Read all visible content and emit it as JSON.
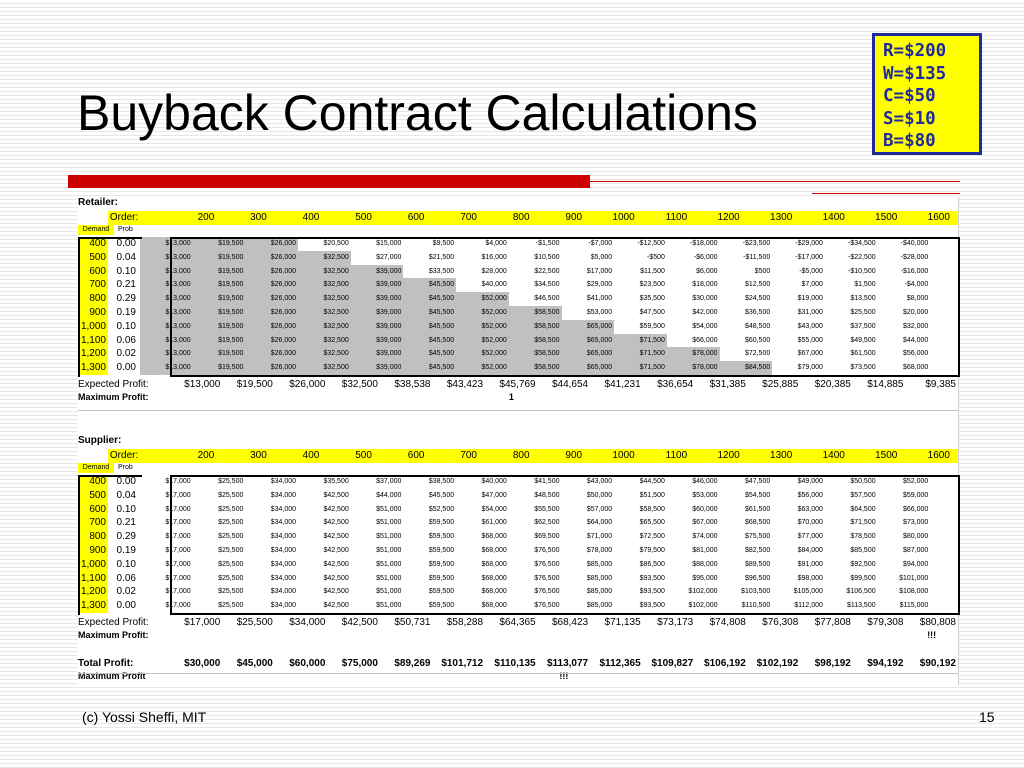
{
  "title": "Buyback Contract Calculations",
  "params": [
    "R=$200",
    "W=$135",
    "C=$50",
    "S=$10",
    "B=$80"
  ],
  "footer": {
    "left": "(c) Yossi Sheffi, MIT",
    "page": "15"
  },
  "table": {
    "order_label": "Order:",
    "demand_label": "Demand",
    "prob_label": "Prob",
    "orders": [
      "200",
      "300",
      "400",
      "500",
      "600",
      "700",
      "800",
      "900",
      "1000",
      "1100",
      "1200",
      "1300",
      "1400",
      "1500",
      "1600"
    ],
    "demands": [
      "400",
      "500",
      "600",
      "700",
      "800",
      "900",
      "1,000",
      "1,100",
      "1,200",
      "1,300"
    ],
    "probs": [
      "0.00",
      "0.04",
      "0.10",
      "0.21",
      "0.29",
      "0.19",
      "0.10",
      "0.06",
      "0.02",
      "0.00"
    ]
  },
  "retailer": {
    "title": "Retailer:",
    "rows": [
      [
        "$13,000",
        "$19,500",
        "$26,000",
        "$20,500",
        "$15,000",
        "$9,500",
        "$4,000",
        "-$1,500",
        "-$7,000",
        "-$12,500",
        "-$18,000",
        "-$23,500",
        "-$29,000",
        "-$34,500",
        "-$40,000"
      ],
      [
        "$13,000",
        "$19,500",
        "$26,000",
        "$32,500",
        "$27,000",
        "$21,500",
        "$16,000",
        "$10,500",
        "$5,000",
        "-$500",
        "-$6,000",
        "-$11,500",
        "-$17,000",
        "-$22,500",
        "-$28,000"
      ],
      [
        "$13,000",
        "$19,500",
        "$26,000",
        "$32,500",
        "$39,000",
        "$33,500",
        "$28,000",
        "$22,500",
        "$17,000",
        "$11,500",
        "$6,000",
        "$500",
        "-$5,000",
        "-$10,500",
        "-$16,000"
      ],
      [
        "$13,000",
        "$19,500",
        "$26,000",
        "$32,500",
        "$39,000",
        "$45,500",
        "$40,000",
        "$34,500",
        "$29,000",
        "$23,500",
        "$18,000",
        "$12,500",
        "$7,000",
        "$1,500",
        "-$4,000"
      ],
      [
        "$13,000",
        "$19,500",
        "$26,000",
        "$32,500",
        "$39,000",
        "$45,500",
        "$52,000",
        "$46,500",
        "$41,000",
        "$35,500",
        "$30,000",
        "$24,500",
        "$19,000",
        "$13,500",
        "$8,000"
      ],
      [
        "$13,000",
        "$19,500",
        "$26,000",
        "$32,500",
        "$39,000",
        "$45,500",
        "$52,000",
        "$58,500",
        "$53,000",
        "$47,500",
        "$42,000",
        "$36,500",
        "$31,000",
        "$25,500",
        "$20,000"
      ],
      [
        "$13,000",
        "$19,500",
        "$26,000",
        "$32,500",
        "$39,000",
        "$45,500",
        "$52,000",
        "$58,500",
        "$65,000",
        "$59,500",
        "$54,000",
        "$48,500",
        "$43,000",
        "$37,500",
        "$32,000"
      ],
      [
        "$13,000",
        "$19,500",
        "$26,000",
        "$32,500",
        "$39,000",
        "$45,500",
        "$52,000",
        "$58,500",
        "$65,000",
        "$71,500",
        "$66,000",
        "$60,500",
        "$55,000",
        "$49,500",
        "$44,000"
      ],
      [
        "$13,000",
        "$19,500",
        "$26,000",
        "$32,500",
        "$39,000",
        "$45,500",
        "$52,000",
        "$58,500",
        "$65,000",
        "$71,500",
        "$78,000",
        "$72,500",
        "$67,000",
        "$61,500",
        "$56,000"
      ],
      [
        "$13,000",
        "$19,500",
        "$26,000",
        "$32,500",
        "$39,000",
        "$45,500",
        "$52,000",
        "$58,500",
        "$65,000",
        "$71,500",
        "$78,000",
        "$84,500",
        "$79,000",
        "$73,500",
        "$68,000"
      ]
    ],
    "expected_label": "Expected Profit:",
    "expected": [
      "$13,000",
      "$19,500",
      "$26,000",
      "$32,500",
      "$38,538",
      "$43,423",
      "$45,769",
      "$44,654",
      "$41,231",
      "$36,654",
      "$31,385",
      "$25,885",
      "$20,385",
      "$14,885",
      "$9,385"
    ],
    "max_label": "Maximum Profit:",
    "max_marks": [
      "",
      "",
      "",
      "",
      "",
      "",
      "1",
      "",
      "",
      "",
      "",
      "",
      "",
      "",
      ""
    ]
  },
  "supplier": {
    "title": "Supplier:",
    "rows": [
      [
        "$17,000",
        "$25,500",
        "$34,000",
        "$35,500",
        "$37,000",
        "$38,500",
        "$40,000",
        "$41,500",
        "$43,000",
        "$44,500",
        "$46,000",
        "$47,500",
        "$49,000",
        "$50,500",
        "$52,000"
      ],
      [
        "$17,000",
        "$25,500",
        "$34,000",
        "$42,500",
        "$44,000",
        "$45,500",
        "$47,000",
        "$48,500",
        "$50,000",
        "$51,500",
        "$53,000",
        "$54,500",
        "$56,000",
        "$57,500",
        "$59,000"
      ],
      [
        "$17,000",
        "$25,500",
        "$34,000",
        "$42,500",
        "$51,000",
        "$52,500",
        "$54,000",
        "$55,500",
        "$57,000",
        "$58,500",
        "$60,000",
        "$61,500",
        "$63,000",
        "$64,500",
        "$66,000"
      ],
      [
        "$17,000",
        "$25,500",
        "$34,000",
        "$42,500",
        "$51,000",
        "$59,500",
        "$61,000",
        "$62,500",
        "$64,000",
        "$65,500",
        "$67,000",
        "$68,500",
        "$70,000",
        "$71,500",
        "$73,000"
      ],
      [
        "$17,000",
        "$25,500",
        "$34,000",
        "$42,500",
        "$51,000",
        "$59,500",
        "$68,000",
        "$69,500",
        "$71,000",
        "$72,500",
        "$74,000",
        "$75,500",
        "$77,000",
        "$78,500",
        "$80,000"
      ],
      [
        "$17,000",
        "$25,500",
        "$34,000",
        "$42,500",
        "$51,000",
        "$59,500",
        "$68,000",
        "$76,500",
        "$78,000",
        "$79,500",
        "$81,000",
        "$82,500",
        "$84,000",
        "$85,500",
        "$87,000"
      ],
      [
        "$17,000",
        "$25,500",
        "$34,000",
        "$42,500",
        "$51,000",
        "$59,500",
        "$68,000",
        "$76,500",
        "$85,000",
        "$86,500",
        "$88,000",
        "$89,500",
        "$91,000",
        "$92,500",
        "$94,000"
      ],
      [
        "$17,000",
        "$25,500",
        "$34,000",
        "$42,500",
        "$51,000",
        "$59,500",
        "$68,000",
        "$76,500",
        "$85,000",
        "$93,500",
        "$95,000",
        "$96,500",
        "$98,000",
        "$99,500",
        "$101,000"
      ],
      [
        "$17,000",
        "$25,500",
        "$34,000",
        "$42,500",
        "$51,000",
        "$59,500",
        "$68,000",
        "$76,500",
        "$85,000",
        "$93,500",
        "$102,000",
        "$103,500",
        "$105,000",
        "$106,500",
        "$108,000"
      ],
      [
        "$17,000",
        "$25,500",
        "$34,000",
        "$42,500",
        "$51,000",
        "$59,500",
        "$68,000",
        "$76,500",
        "$85,000",
        "$93,500",
        "$102,000",
        "$110,500",
        "$112,000",
        "$113,500",
        "$115,000"
      ]
    ],
    "expected_label": "Expected Profit:",
    "expected": [
      "$17,000",
      "$25,500",
      "$34,000",
      "$42,500",
      "$50,731",
      "$58,288",
      "$64,365",
      "$68,423",
      "$71,135",
      "$73,173",
      "$74,808",
      "$76,308",
      "$77,808",
      "$79,308",
      "$80,808"
    ],
    "max_label": "Maximum Profit:",
    "max_marks": [
      "",
      "",
      "",
      "",
      "",
      "",
      "",
      "",
      "",
      "",
      "",
      "",
      "",
      "",
      "!!!"
    ]
  },
  "total": {
    "label": "Total Profit:",
    "values": [
      "$30,000",
      "$45,000",
      "$60,000",
      "$75,000",
      "$89,269",
      "$101,712",
      "$110,135",
      "$113,077",
      "$112,365",
      "$109,827",
      "$106,192",
      "$102,192",
      "$98,192",
      "$94,192",
      "$90,192"
    ],
    "max_label": "Maximum Profit",
    "max_marks": [
      "",
      "",
      "",
      "",
      "",
      "",
      "",
      "!!!",
      "",
      "",
      "",
      "",
      "",
      "",
      ""
    ]
  }
}
